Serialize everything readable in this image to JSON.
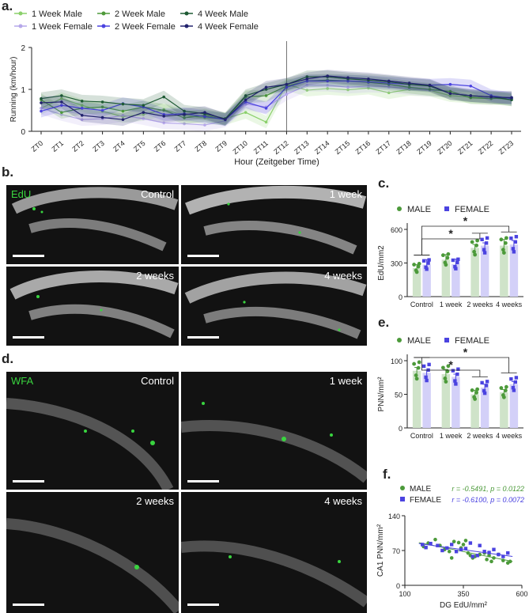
{
  "panel_a": {
    "letter": "a.",
    "chart_data": {
      "type": "line",
      "ylabel": "Running (km/hour)",
      "xlabel": "Hour (Zeitgeber Time)",
      "ylim": [
        0,
        2
      ],
      "yticks": [
        "0",
        "1",
        "2"
      ],
      "categories": [
        "ZT0",
        "ZT1",
        "ZT2",
        "ZT3",
        "ZT4",
        "ZT5",
        "ZT6",
        "ZT7",
        "ZT8",
        "ZT9",
        "ZT10",
        "ZT11",
        "ZT12",
        "ZT13",
        "ZT14",
        "ZT15",
        "ZT16",
        "ZT17",
        "ZT18",
        "ZT19",
        "ZT20",
        "ZT21",
        "ZT22",
        "ZT23"
      ],
      "lights_off_marker": "ZT12",
      "series": [
        {
          "name": "1 Week Male",
          "color": "#8bd06b",
          "values": [
            0.55,
            0.78,
            0.62,
            0.48,
            0.35,
            0.4,
            0.52,
            0.38,
            0.32,
            0.3,
            0.45,
            0.22,
            1.12,
            0.98,
            1.02,
            0.99,
            1.03,
            0.92,
            1.0,
            0.98,
            0.85,
            0.82,
            0.8,
            0.75
          ]
        },
        {
          "name": "1 Week Female",
          "color": "#b6a8ea",
          "values": [
            0.55,
            0.4,
            0.28,
            0.3,
            0.38,
            0.3,
            0.2,
            0.18,
            0.15,
            0.25,
            0.65,
            0.58,
            0.88,
            1.1,
            1.1,
            1.05,
            1.08,
            1.06,
            1.02,
            0.98,
            0.96,
            0.85,
            0.8,
            0.82
          ]
        },
        {
          "name": "2 Week Male",
          "color": "#4e9a3a",
          "values": [
            0.75,
            0.45,
            0.55,
            0.58,
            0.48,
            0.58,
            0.5,
            0.32,
            0.38,
            0.28,
            0.82,
            0.85,
            1.08,
            1.2,
            1.22,
            1.2,
            1.17,
            1.12,
            1.05,
            1.0,
            0.95,
            0.8,
            0.78,
            0.8
          ]
        },
        {
          "name": "2 Week Female",
          "color": "#4b43e0",
          "values": [
            0.48,
            0.62,
            0.55,
            0.5,
            0.66,
            0.58,
            0.4,
            0.42,
            0.35,
            0.28,
            0.7,
            0.55,
            1.05,
            1.2,
            1.2,
            1.2,
            1.18,
            1.15,
            1.12,
            1.1,
            1.12,
            1.08,
            0.85,
            0.78
          ]
        },
        {
          "name": "4 Week Male",
          "color": "#1e5a34",
          "values": [
            0.78,
            0.85,
            0.72,
            0.7,
            0.65,
            0.62,
            0.82,
            0.48,
            0.42,
            0.3,
            0.85,
            1.0,
            1.12,
            1.3,
            1.3,
            1.25,
            1.22,
            1.18,
            1.12,
            1.08,
            0.9,
            0.85,
            0.82,
            0.75
          ]
        },
        {
          "name": "4 Week Female",
          "color": "#22236e",
          "values": [
            0.68,
            0.7,
            0.38,
            0.33,
            0.28,
            0.45,
            0.36,
            0.4,
            0.45,
            0.28,
            0.75,
            1.05,
            1.12,
            1.25,
            1.32,
            1.28,
            1.25,
            1.2,
            1.15,
            1.1,
            0.9,
            0.85,
            0.82,
            0.8
          ]
        }
      ]
    }
  },
  "panel_b": {
    "letter": "b.",
    "stain": "EdU",
    "images": [
      "Control",
      "1 week",
      "2 weeks",
      "4 weeks"
    ]
  },
  "panel_c": {
    "letter": "c.",
    "chart_data": {
      "type": "bar",
      "ylabel": "EdU/mm2",
      "ylim": [
        0,
        600
      ],
      "yticks": [
        "0",
        "300",
        "600"
      ],
      "categories": [
        "Control",
        "1 week",
        "2 weeks",
        "4 weeks"
      ],
      "legend": [
        "MALE",
        "FEMALE"
      ],
      "significance": "*",
      "series": [
        {
          "name": "MALE",
          "color": "#4c9a3a",
          "bar_color": "#cfe3c9",
          "values": [
            255,
            330,
            435,
            455
          ],
          "sem": [
            30,
            45,
            30,
            55
          ]
        },
        {
          "name": "FEMALE",
          "color": "#4b43e0",
          "bar_color": "#d3d0f8",
          "values": [
            285,
            290,
            455,
            465
          ],
          "sem": [
            45,
            45,
            25,
            35
          ]
        }
      ]
    }
  },
  "panel_d": {
    "letter": "d.",
    "stain": "WFA",
    "images": [
      "Control",
      "1 week",
      "2 weeks",
      "4 weeks"
    ]
  },
  "panel_e": {
    "letter": "e.",
    "chart_data": {
      "type": "bar",
      "ylabel": "PNN/mm²",
      "ylim": [
        0,
        100
      ],
      "yticks": [
        "0",
        "50",
        "100"
      ],
      "categories": [
        "Control",
        "1 week",
        "2 weeks",
        "4 weeks"
      ],
      "legend": [
        "MALE",
        "FEMALE"
      ],
      "significance": "*",
      "series": [
        {
          "name": "MALE",
          "color": "#4c9a3a",
          "bar_color": "#cfe3c9",
          "values": [
            85,
            80,
            50,
            53
          ],
          "sem": [
            5,
            7,
            6,
            4
          ]
        },
        {
          "name": "FEMALE",
          "color": "#4b43e0",
          "bar_color": "#d3d0f8",
          "values": [
            82,
            76,
            60,
            65
          ],
          "sem": [
            4,
            4,
            5,
            4
          ]
        }
      ]
    }
  },
  "panel_f": {
    "letter": "f.",
    "chart_data": {
      "type": "scatter",
      "xlabel": "DG EdU/mm²",
      "ylabel": "CA1 PNN/mm²",
      "xlim": [
        100,
        600
      ],
      "ylim": [
        0,
        140
      ],
      "xticks": [
        "100",
        "350",
        "600"
      ],
      "yticks": [
        "0",
        "70",
        "140"
      ],
      "series": [
        {
          "name": "MALE",
          "color": "#4c9a3a",
          "stat": "r = -0.5491, p = 0.0122",
          "x": [
            180,
            200,
            230,
            250,
            270,
            290,
            300,
            310,
            330,
            340,
            350,
            360,
            370,
            380,
            390,
            400,
            420,
            440,
            450,
            460,
            470,
            480,
            500,
            520,
            540,
            550
          ],
          "y": [
            78,
            85,
            92,
            80,
            72,
            68,
            55,
            88,
            86,
            75,
            82,
            90,
            65,
            60,
            55,
            58,
            62,
            65,
            52,
            60,
            48,
            55,
            62,
            50,
            45,
            48
          ],
          "fit": [
            [
              160,
              86
            ],
            [
              560,
              48
            ]
          ]
        },
        {
          "name": "FEMALE",
          "color": "#4b43e0",
          "stat": "r = -0.6100, p = 0.0072",
          "x": [
            175,
            190,
            210,
            240,
            260,
            280,
            300,
            320,
            340,
            360,
            380,
            390,
            410,
            420,
            440,
            460,
            480,
            500,
            520,
            540
          ],
          "y": [
            82,
            76,
            84,
            80,
            70,
            75,
            82,
            68,
            72,
            74,
            85,
            58,
            60,
            80,
            68,
            66,
            72,
            62,
            58,
            65
          ],
          "fit": [
            [
              160,
              84
            ],
            [
              560,
              58
            ]
          ]
        }
      ]
    }
  }
}
